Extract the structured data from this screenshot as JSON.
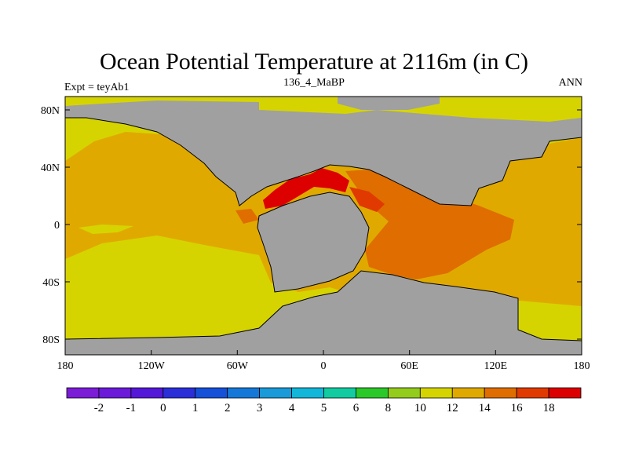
{
  "header": {
    "title": "Ocean Potential Temperature at 2116m (in C)",
    "experiment": "Expt = teyAb1",
    "period": "136_4_MaBP",
    "season": "ANN"
  },
  "map": {
    "y_tick_labels": [
      "80N",
      "40N",
      "0",
      "40S",
      "80S"
    ],
    "x_tick_labels": [
      "180",
      "120W",
      "60W",
      "0",
      "60E",
      "120E",
      "180"
    ],
    "colors": {
      "land": "#a0a0a0",
      "level_10_12": "#d6d400",
      "level_12_14": "#e0a900",
      "level_14_16": "#df6d00",
      "level_16_18": "#e03a00",
      "level_18_plus": "#dd0000"
    }
  },
  "colorbar": {
    "labels": [
      "-2",
      "-1",
      "0",
      "1",
      "2",
      "3",
      "4",
      "5",
      "6",
      "8",
      "10",
      "12",
      "14",
      "16",
      "18"
    ],
    "colors": [
      "#7b1cd6",
      "#6a1ad8",
      "#5418d8",
      "#2a2fd8",
      "#1550d8",
      "#1578d8",
      "#1a9ad8",
      "#12b6d8",
      "#12cba0",
      "#2bc829",
      "#94cc1b",
      "#d6d400",
      "#e0a900",
      "#df6d00",
      "#e03a00",
      "#dd0000"
    ]
  }
}
